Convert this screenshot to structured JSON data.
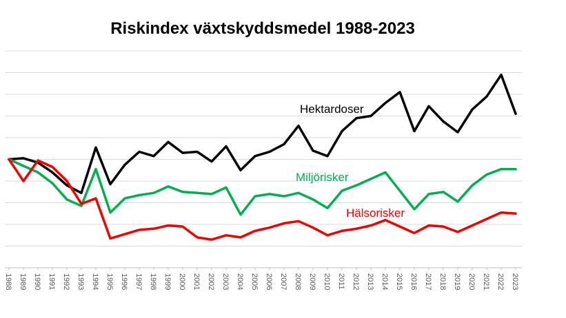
{
  "chart_data": {
    "type": "line",
    "title": "Riskindex växtskyddsmedel 1988-2023",
    "x": [
      1988,
      1989,
      1990,
      1991,
      1992,
      1993,
      1994,
      1995,
      1996,
      1997,
      1998,
      1999,
      2000,
      2001,
      2002,
      2003,
      2004,
      2005,
      2006,
      2007,
      2008,
      2009,
      2010,
      2011,
      2012,
      2013,
      2014,
      2015,
      2016,
      2017,
      2018,
      2019,
      2020,
      2021,
      2022,
      2023
    ],
    "series": [
      {
        "id": "hektardoser",
        "name": "Hektardoser",
        "color": "#000000",
        "values": [
          50,
          50.5,
          48.5,
          44,
          38,
          34.5,
          55.5,
          38.5,
          47.5,
          53.5,
          51.5,
          58,
          53,
          53.5,
          49,
          56,
          45,
          51.5,
          53.5,
          57,
          65.5,
          54,
          51.5,
          63,
          69,
          70,
          76,
          81,
          63,
          74.5,
          67.5,
          62.5,
          73,
          79,
          89,
          71
        ]
      },
      {
        "id": "miljorisker",
        "name": "Miljörisker",
        "color": "#00b050",
        "values": [
          50,
          47,
          44,
          39,
          31.5,
          28.5,
          45.5,
          25.5,
          32,
          33.5,
          34.5,
          37.5,
          35,
          34.5,
          34,
          37,
          24.5,
          33,
          34,
          33,
          34.5,
          31.5,
          27.5,
          35.5,
          38,
          41,
          44,
          35.5,
          27,
          34,
          35,
          30.5,
          38,
          43,
          45.5,
          45.5
        ]
      },
      {
        "id": "halsorisker",
        "name": "Hälsorisker",
        "color": "#f40000",
        "values": [
          50,
          40,
          49.5,
          46.5,
          40,
          29.5,
          32,
          13.5,
          15.5,
          17.5,
          18,
          19.5,
          19,
          14,
          13,
          15,
          14,
          17,
          18.5,
          20.5,
          21.5,
          18.5,
          15,
          17,
          18,
          19.5,
          22,
          19,
          16,
          19.5,
          19,
          16.5,
          19.5,
          22.5,
          25.5,
          25
        ]
      }
    ],
    "ylim": [
      0,
      100
    ],
    "gridline_step": 10,
    "y_tick_labels_visible": false,
    "grid": true,
    "legend_position": "inline-labels",
    "x_label_rotation_deg": 90,
    "axis_color": "#bfbfbf",
    "gridline_color": "#d9d9d9",
    "x_label_color": "#595959"
  }
}
